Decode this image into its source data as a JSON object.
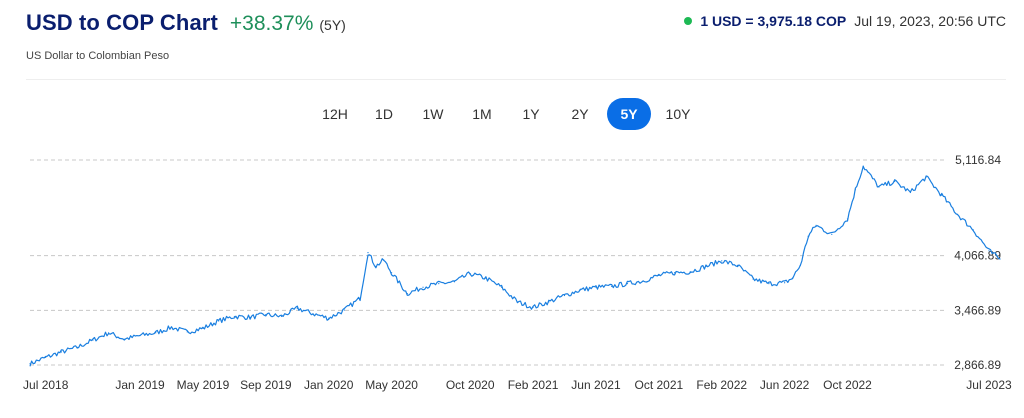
{
  "header": {
    "title": "USD to COP Chart",
    "change": "+38.37%",
    "period": "(5Y)",
    "subtitle": "US Dollar to Colombian Peso"
  },
  "rate": {
    "value": "1 USD = 3,975.18 COP",
    "timestamp": "Jul 19, 2023, 20:56 UTC",
    "status_color": "#1db954"
  },
  "ranges": {
    "items": [
      "12H",
      "1D",
      "1W",
      "1M",
      "1Y",
      "2Y",
      "5Y",
      "10Y"
    ],
    "active": "5Y"
  },
  "colors": {
    "line": "#1a7fe0",
    "title": "#0a1e6e",
    "positive": "#1e8f5a",
    "active_button": "#0a6ee6"
  },
  "chart_data": {
    "type": "line",
    "title": "",
    "xlabel": "",
    "ylabel": "",
    "ylim": [
      2866.89,
      5116.84
    ],
    "yticks": [
      5116.84,
      4066.89,
      3466.89,
      2866.89
    ],
    "ytick_labels": [
      "5,116.84",
      "4,066.89",
      "3,466.89",
      "2,866.89"
    ],
    "xtick_labels": [
      "Jul 2018",
      "Jan 2019",
      "May 2019",
      "Sep 2019",
      "Jan 2020",
      "May 2020",
      "Oct 2020",
      "Feb 2021",
      "Jun 2021",
      "Oct 2021",
      "Feb 2022",
      "Jun 2022",
      "Oct 2022",
      "Jul 2023"
    ],
    "xtick_months": [
      1,
      7,
      11,
      15,
      19,
      23,
      28,
      32,
      36,
      40,
      44,
      48,
      52,
      61
    ],
    "grid": "horizontal-dashed",
    "series": [
      {
        "months": [
          0,
          1,
          2,
          3,
          4,
          5,
          6,
          7,
          8,
          9,
          10,
          11,
          12,
          13,
          14,
          15,
          16,
          17,
          18,
          19,
          20,
          21,
          21.5,
          22,
          22.5,
          23,
          24,
          25,
          26,
          27,
          28,
          29,
          30,
          31,
          32,
          33,
          34,
          35,
          36,
          37,
          38,
          39,
          40,
          41,
          42,
          43,
          44,
          45,
          46,
          47,
          48,
          48.5,
          49,
          49.5,
          50,
          51,
          52,
          52.5,
          53,
          54,
          55,
          56,
          57,
          58,
          59,
          60,
          61,
          61.7
        ],
        "values": [
          2880,
          2950,
          3010,
          3060,
          3140,
          3220,
          3150,
          3190,
          3220,
          3280,
          3230,
          3270,
          3350,
          3400,
          3390,
          3420,
          3400,
          3490,
          3430,
          3380,
          3470,
          3600,
          4100,
          3950,
          4020,
          3880,
          3650,
          3720,
          3760,
          3780,
          3870,
          3820,
          3720,
          3560,
          3500,
          3560,
          3630,
          3690,
          3720,
          3730,
          3760,
          3790,
          3850,
          3880,
          3890,
          3950,
          4010,
          3960,
          3810,
          3760,
          3770,
          3820,
          3960,
          4280,
          4400,
          4300,
          4470,
          4790,
          5050,
          4820,
          4880,
          4760,
          4930,
          4730,
          4520,
          4350,
          4120,
          4030
        ]
      }
    ]
  }
}
